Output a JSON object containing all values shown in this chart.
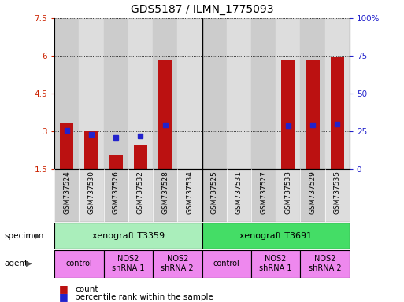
{
  "title": "GDS5187 / ILMN_1775093",
  "samples": [
    "GSM737524",
    "GSM737530",
    "GSM737526",
    "GSM737532",
    "GSM737528",
    "GSM737534",
    "GSM737525",
    "GSM737531",
    "GSM737527",
    "GSM737533",
    "GSM737529",
    "GSM737535"
  ],
  "bar_values": [
    3.35,
    3.0,
    2.05,
    2.45,
    5.85,
    1.5,
    1.5,
    1.5,
    1.5,
    5.85,
    5.85,
    5.95
  ],
  "dot_values": [
    3.02,
    2.87,
    2.75,
    2.82,
    3.25,
    null,
    null,
    null,
    null,
    3.22,
    3.25,
    3.28
  ],
  "ymin": 1.5,
  "ymax": 7.5,
  "yticks": [
    1.5,
    3.0,
    4.5,
    6.0,
    7.5
  ],
  "ytick_labels": [
    "1.5",
    "3",
    "4.5",
    "6",
    "7.5"
  ],
  "right_yticks_pct": [
    0,
    25,
    50,
    75,
    100
  ],
  "right_ytick_labels": [
    "0",
    "25",
    "50",
    "75",
    "100%"
  ],
  "specimen_groups": [
    {
      "label": "xenograft T3359",
      "start": 0,
      "end": 6,
      "color": "#AAEEBB"
    },
    {
      "label": "xenograft T3691",
      "start": 6,
      "end": 12,
      "color": "#44DD66"
    }
  ],
  "agent_groups": [
    {
      "label": "control",
      "start": 0,
      "end": 2,
      "color": "#EE88EE"
    },
    {
      "label": "NOS2\nshRNA 1",
      "start": 2,
      "end": 4,
      "color": "#EE88EE"
    },
    {
      "label": "NOS2\nshRNA 2",
      "start": 4,
      "end": 6,
      "color": "#EE88EE"
    },
    {
      "label": "control",
      "start": 6,
      "end": 8,
      "color": "#EE88EE"
    },
    {
      "label": "NOS2\nshRNA 1",
      "start": 8,
      "end": 10,
      "color": "#EE88EE"
    },
    {
      "label": "NOS2\nshRNA 2",
      "start": 10,
      "end": 12,
      "color": "#EE88EE"
    }
  ],
  "bar_color": "#BB1111",
  "dot_color": "#2222CC",
  "bar_width": 0.55,
  "background_color": "#ffffff",
  "title_fontsize": 10,
  "tick_fontsize": 7.5,
  "sample_fontsize": 6.5,
  "annot_fontsize": 7.5,
  "col_bg_even": "#CCCCCC",
  "col_bg_odd": "#DDDDDD"
}
